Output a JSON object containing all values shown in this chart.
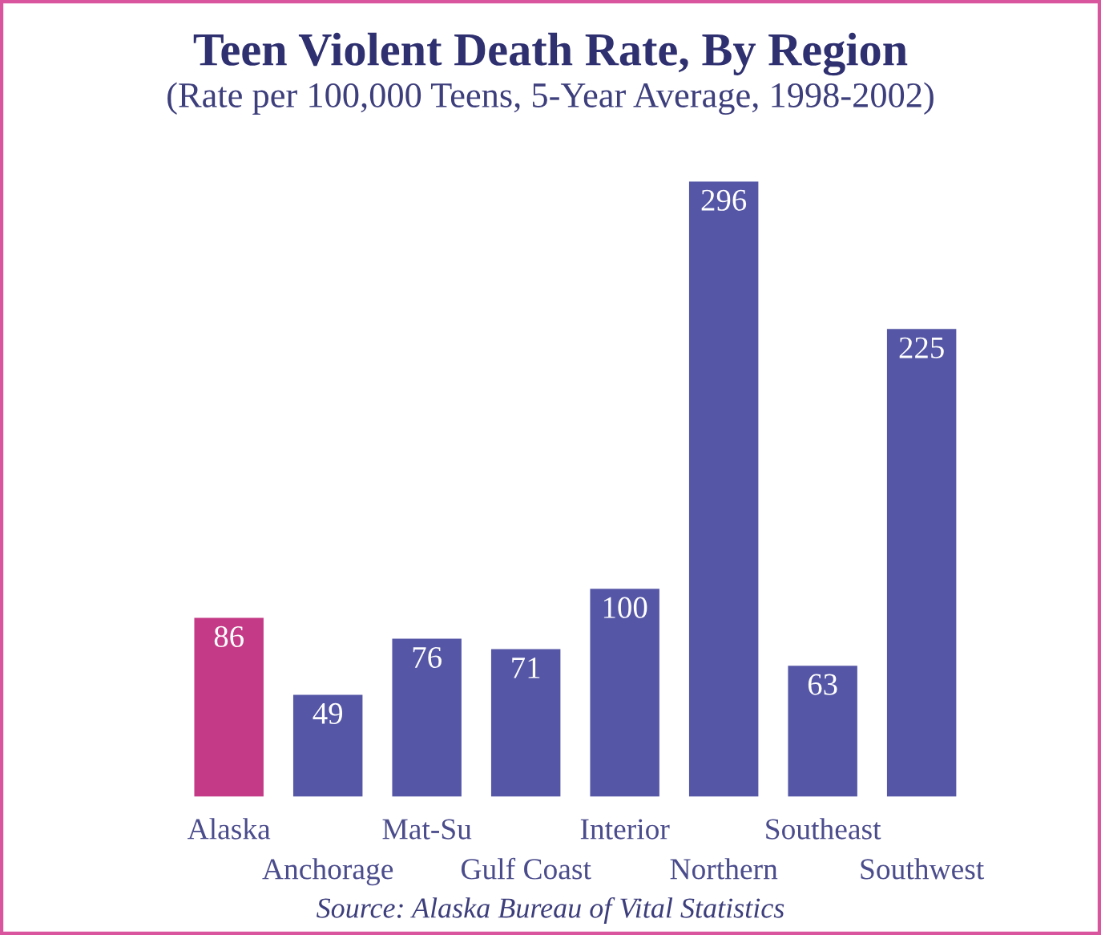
{
  "chart_data": {
    "type": "bar",
    "title": "Teen Violent Death Rate, By Region",
    "subtitle": "(Rate per 100,000 Teens, 5-Year Average, 1998-2002)",
    "categories": [
      "Alaska",
      "Anchorage",
      "Mat-Su",
      "Gulf Coast",
      "Interior",
      "Northern",
      "Southeast",
      "Southwest"
    ],
    "values": [
      86,
      49,
      76,
      71,
      100,
      296,
      63,
      225
    ],
    "colors": [
      "#c43a86",
      "#5556a6",
      "#5556a6",
      "#5556a6",
      "#5556a6",
      "#5556a6",
      "#5556a6",
      "#5556a6"
    ],
    "data_labels": true,
    "annotations": [
      "Source: Alaska Bureau of Vital Statistics"
    ]
  }
}
